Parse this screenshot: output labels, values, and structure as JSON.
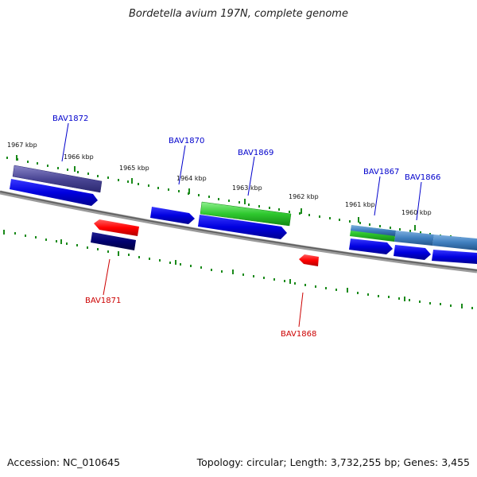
{
  "title": "Bordetella avium 197N, complete genome",
  "footer": {
    "accession": "Accession: NC_010645",
    "summary": "Topology: circular; Length: 3,732,255 bp; Genes: 3,455"
  },
  "scale_labels": [
    "1967 kbp",
    "1966 kbp",
    "1965 kbp",
    "1964 kbp",
    "1963 kbp",
    "1962 kbp",
    "1961 kbp",
    "1960 kbp"
  ],
  "genes": [
    {
      "label": "BAV1872",
      "strand": "forward",
      "color": "#0000cc"
    },
    {
      "label": "BAV1871",
      "strand": "reverse",
      "color": "#cc0000"
    },
    {
      "label": "BAV1870",
      "strand": "forward",
      "color": "#0000cc"
    },
    {
      "label": "BAV1869",
      "strand": "forward",
      "color": "#0000cc"
    },
    {
      "label": "BAV1868",
      "strand": "reverse",
      "color": "#cc0000"
    },
    {
      "label": "BAV1867",
      "strand": "forward",
      "color": "#0000cc"
    },
    {
      "label": "BAV1866",
      "strand": "forward",
      "color": "#0000cc"
    }
  ]
}
